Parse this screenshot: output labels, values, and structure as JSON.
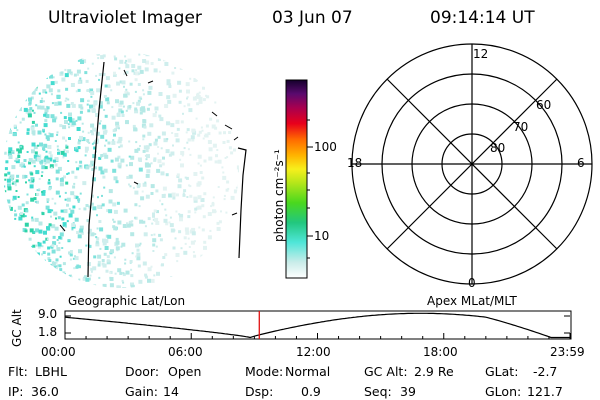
{
  "header": {
    "instrument": "Ultraviolet Imager",
    "date": "03 Jun 07",
    "time": "09:14:14 UT"
  },
  "colorbar": {
    "unit_label": "photon cm⁻²s⁻¹",
    "ticks": [
      "100",
      "10"
    ]
  },
  "polar": {
    "mlt_labels": {
      "top": "12",
      "left": "18",
      "right": "6",
      "bottom": "0"
    },
    "lat_labels": [
      "60",
      "70",
      "80"
    ]
  },
  "timeline": {
    "left_title": "Geographic Lat/Lon",
    "right_title": "Apex MLat/MLT",
    "y_axis_label": "GC Alt",
    "y_ticks": [
      "9.0",
      "1.8"
    ],
    "x_ticks": [
      "00:00",
      "06:00",
      "12:00",
      "18:00",
      "23:59"
    ],
    "marker_time": "09:14"
  },
  "info": {
    "row1": [
      {
        "label": "Flt:",
        "value": "LBHL"
      },
      {
        "label": "Door:",
        "value": "Open"
      },
      {
        "label": "Mode:",
        "value": "Normal"
      },
      {
        "label": "GC Alt:",
        "value": "2.9 Re"
      },
      {
        "label": "GLat:",
        "value": "-2.7"
      }
    ],
    "row2": [
      {
        "label": "IP:",
        "value": "36.0"
      },
      {
        "label": "Gain:",
        "value": "14"
      },
      {
        "label": "Dsp:",
        "value": "0.9"
      },
      {
        "label": "Seq:",
        "value": "39"
      },
      {
        "label": "GLon:",
        "value": "121.7"
      }
    ]
  }
}
